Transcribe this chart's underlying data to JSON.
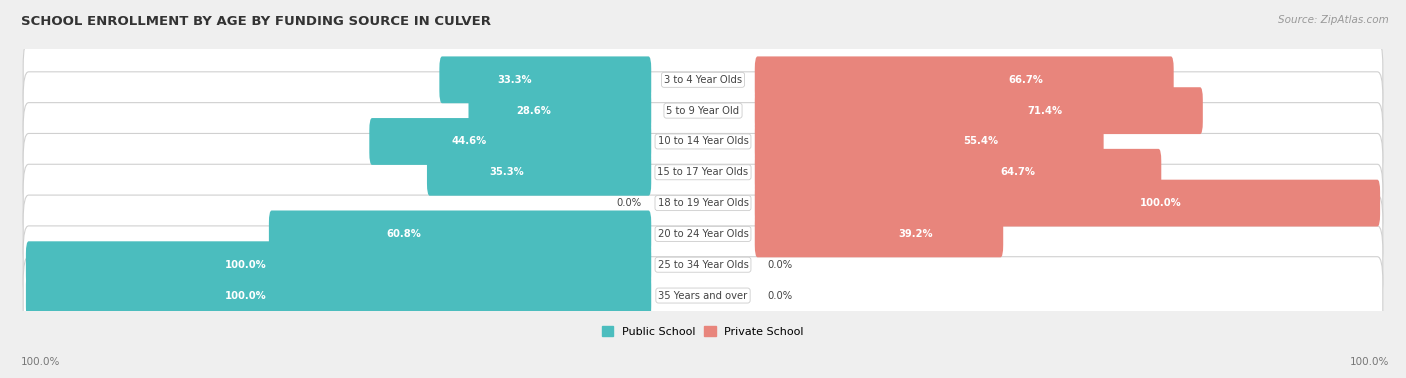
{
  "title": "SCHOOL ENROLLMENT BY AGE BY FUNDING SOURCE IN CULVER",
  "source": "Source: ZipAtlas.com",
  "categories": [
    "3 to 4 Year Olds",
    "5 to 9 Year Old",
    "10 to 14 Year Olds",
    "15 to 17 Year Olds",
    "18 to 19 Year Olds",
    "20 to 24 Year Olds",
    "25 to 34 Year Olds",
    "35 Years and over"
  ],
  "public_pct": [
    33.3,
    28.6,
    44.6,
    35.3,
    0.0,
    60.8,
    100.0,
    100.0
  ],
  "private_pct": [
    66.7,
    71.4,
    55.4,
    64.7,
    100.0,
    39.2,
    0.0,
    0.0
  ],
  "public_color": "#4BBDBE",
  "private_color": "#E8857C",
  "private_color_light": "#F0AFA9",
  "bg_color": "#efefef",
  "row_bg": "#ffffff",
  "row_bg_alt": "#f7f7f7",
  "label_color": "#444444",
  "legend_label_public": "Public School",
  "legend_label_private": "Private School",
  "x_left_label": "100.0%",
  "x_right_label": "100.0%",
  "total_width": 100.0,
  "label_zone_pct": 16.0
}
